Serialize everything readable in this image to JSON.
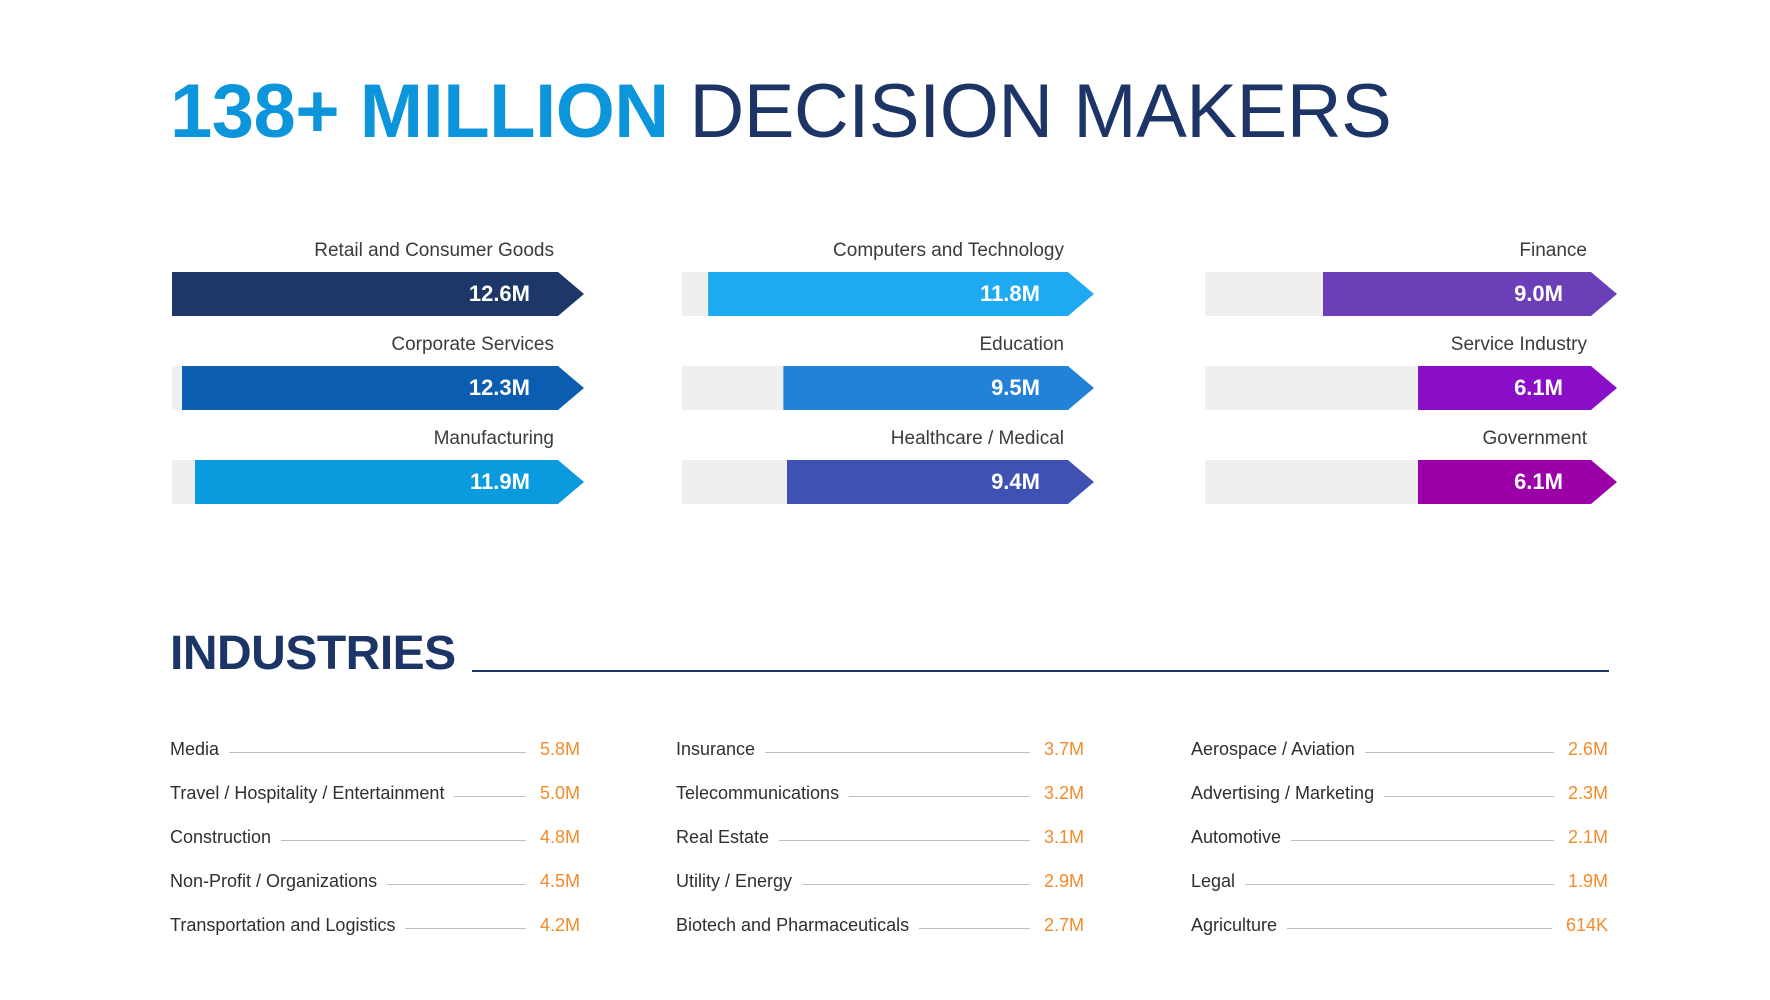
{
  "headline": {
    "accent": "138+ MILLION",
    "rest": "DECISION MAKERS"
  },
  "chart_data": {
    "type": "bar",
    "xlim": [
      0,
      12.6
    ],
    "unit": "M",
    "series": [
      {
        "name": "Retail and Consumer Goods",
        "value": 12.6,
        "label": "12.6M",
        "color": "#1c3768"
      },
      {
        "name": "Corporate Services",
        "value": 12.3,
        "label": "12.3M",
        "color": "#0b5db0"
      },
      {
        "name": "Manufacturing",
        "value": 11.9,
        "label": "11.9M",
        "color": "#0a9bde"
      },
      {
        "name": "Computers and Technology",
        "value": 11.8,
        "label": "11.8M",
        "color": "#1eaaf0"
      },
      {
        "name": "Education",
        "value": 9.5,
        "label": "9.5M",
        "color": "#2481d8"
      },
      {
        "name": "Healthcare / Medical",
        "value": 9.4,
        "label": "9.4M",
        "color": "#3f52b4"
      },
      {
        "name": "Finance",
        "value": 9.0,
        "label": "9.0M",
        "color": "#6b3fb8"
      },
      {
        "name": "Service Industry",
        "value": 6.1,
        "label": "6.1M",
        "color": "#8a0dc8"
      },
      {
        "name": "Government",
        "value": 6.1,
        "label": "6.1M",
        "color": "#9b00a8"
      }
    ]
  },
  "industries": {
    "title": "INDUSTRIES",
    "items": [
      {
        "name": "Media",
        "value": "5.8M"
      },
      {
        "name": "Travel / Hospitality / Entertainment",
        "value": "5.0M"
      },
      {
        "name": "Construction",
        "value": "4.8M"
      },
      {
        "name": "Non-Profit / Organizations",
        "value": "4.5M"
      },
      {
        "name": "Transportation and Logistics",
        "value": "4.2M"
      },
      {
        "name": "Insurance",
        "value": "3.7M"
      },
      {
        "name": "Telecommunications",
        "value": "3.2M"
      },
      {
        "name": "Real Estate",
        "value": "3.1M"
      },
      {
        "name": "Utility / Energy",
        "value": "2.9M"
      },
      {
        "name": "Biotech and Pharmaceuticals",
        "value": "2.7M"
      },
      {
        "name": "Aerospace / Aviation",
        "value": "2.6M"
      },
      {
        "name": "Advertising / Marketing",
        "value": "2.3M"
      },
      {
        "name": "Automotive",
        "value": "2.1M"
      },
      {
        "name": "Legal",
        "value": "1.9M"
      },
      {
        "name": "Agriculture",
        "value": "614K"
      }
    ]
  }
}
